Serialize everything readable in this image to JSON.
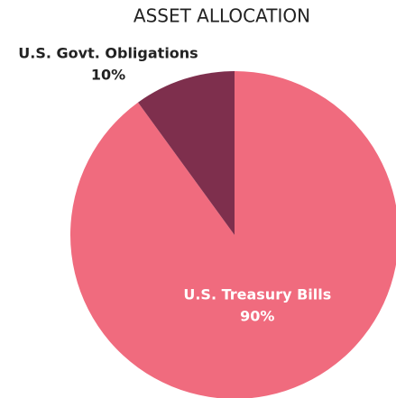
{
  "chart_data": {
    "type": "pie",
    "title": "ASSET ALLOCATION",
    "labels": [
      "U.S. Treasury Bills",
      "U.S. Govt. Obligations"
    ],
    "values": [
      90,
      10
    ],
    "value_labels": [
      "90%",
      "10%"
    ],
    "colors": [
      "#f06b7e",
      "#7e2f4d"
    ]
  }
}
